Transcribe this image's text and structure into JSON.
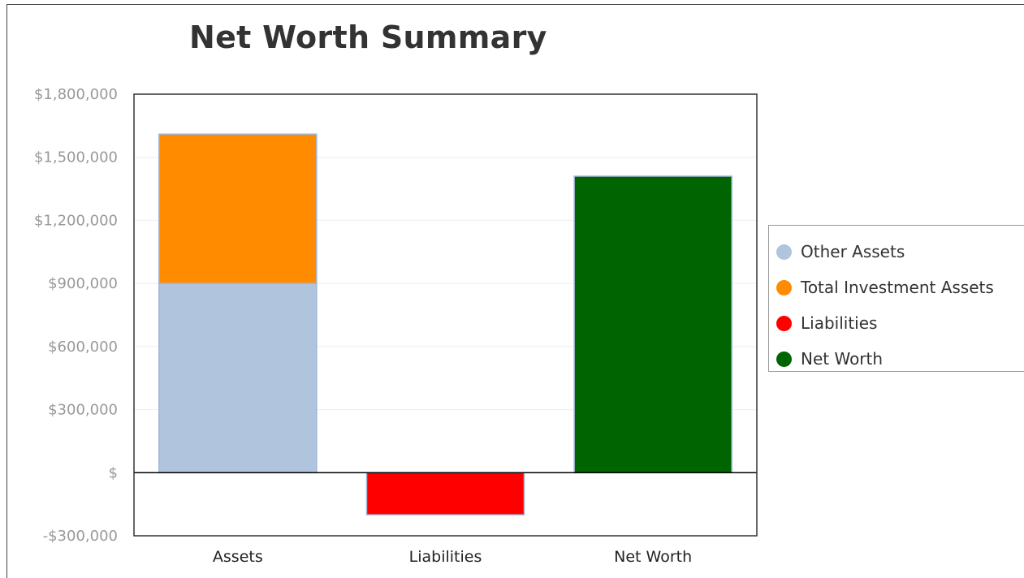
{
  "chart_data": {
    "type": "bar",
    "stacked": true,
    "title": "Net Worth Summary",
    "categories": [
      "Assets",
      "Liabilities",
      "Net Worth"
    ],
    "series": [
      {
        "name": "Other Assets",
        "color": "#b0c4de",
        "values": [
          900000,
          0,
          0
        ]
      },
      {
        "name": "Total Investment Assets",
        "color": "#ff8c00",
        "values": [
          710000,
          0,
          0
        ]
      },
      {
        "name": "Liabilities",
        "color": "#ff0000",
        "values": [
          0,
          -200000,
          0
        ]
      },
      {
        "name": "Net Worth",
        "color": "#006400",
        "values": [
          0,
          0,
          1410000
        ]
      }
    ],
    "yticks": [
      {
        "value": 1800000,
        "label": "$1,800,000"
      },
      {
        "value": 1500000,
        "label": "$1,500,000"
      },
      {
        "value": 1200000,
        "label": "$1,200,000"
      },
      {
        "value": 900000,
        "label": "$900,000"
      },
      {
        "value": 600000,
        "label": "$600,000"
      },
      {
        "value": 300000,
        "label": "$300,000"
      },
      {
        "value": 0,
        "label": "$"
      },
      {
        "value": -300000,
        "label": "-$300,000"
      }
    ],
    "ylim": [
      -300000,
      1800000
    ],
    "xlabel": "",
    "ylabel": "",
    "grid": true,
    "legend": "right"
  }
}
